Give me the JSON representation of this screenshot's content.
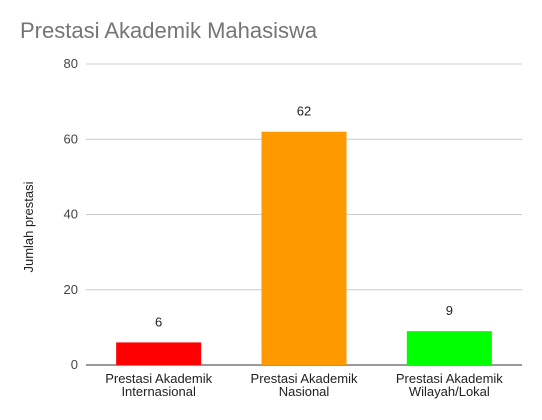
{
  "chart_data": {
    "type": "bar",
    "title": "Prestasi Akademik Mahasiswa",
    "xlabel": "",
    "ylabel": "Jumlah prestasi",
    "ylim": [
      0,
      80
    ],
    "yticks": [
      0,
      20,
      40,
      60,
      80
    ],
    "grid": true,
    "legend": "none",
    "categories": [
      [
        "Prestasi Akademik",
        "Internasional"
      ],
      [
        "Prestasi Akademik",
        "Nasional"
      ],
      [
        "Prestasi Akademik",
        "Wilayah/Lokal"
      ]
    ],
    "values": [
      6,
      62,
      9
    ],
    "colors": [
      "#ff0000",
      "#ff9900",
      "#00ff00"
    ],
    "data_labels": [
      "6",
      "62",
      "9"
    ]
  }
}
